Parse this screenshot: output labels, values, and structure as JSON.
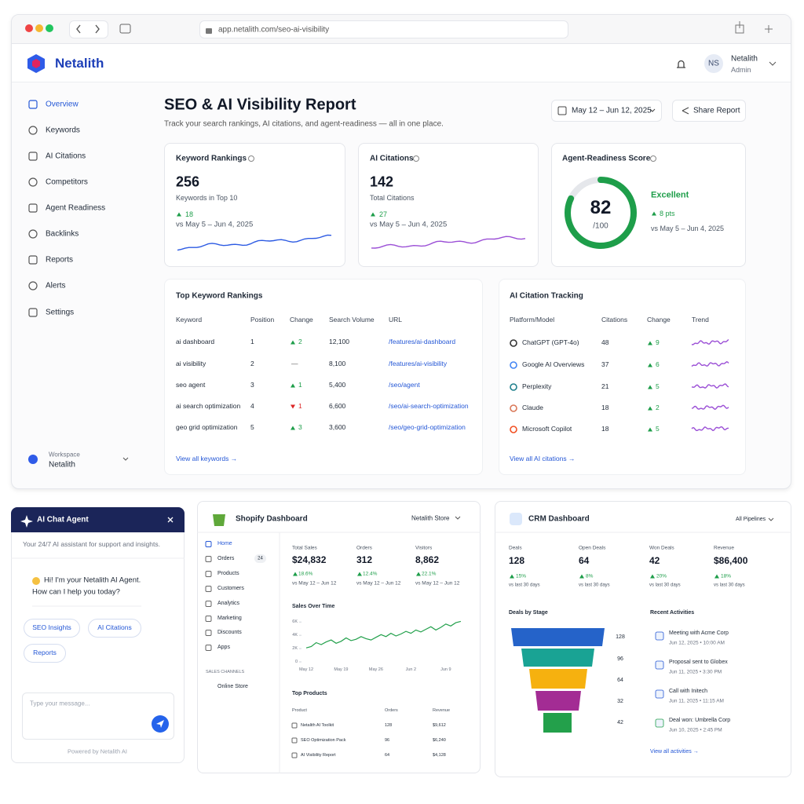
{
  "browser": {
    "url": "app.netalith.com/seo-ai-visibility"
  },
  "app": {
    "brand": "Netalith",
    "user": {
      "initials": "NS",
      "name": "Netalith",
      "role": "Admin"
    },
    "nav": [
      "Overview",
      "Keywords",
      "AI Citations",
      "Competitors",
      "Agent Readiness",
      "Backlinks",
      "Reports",
      "Alerts",
      "Settings"
    ],
    "workspace": {
      "label": "Workspace",
      "name": "Netalith"
    }
  },
  "report": {
    "title": "SEO & AI Visibility Report",
    "subtitle": "Track your search rankings, AI citations, and agent-readiness — all in one place.",
    "date_range": "May 12 – Jun 12, 2025",
    "share": "Share Report",
    "cards": [
      {
        "title": "Keyword Rankings",
        "value": "256",
        "caption": "Keywords in Top 10",
        "delta": "18",
        "compare": "vs May 5 – Jun 4, 2025"
      },
      {
        "title": "AI Citations",
        "value": "142",
        "caption": "Total Citations",
        "delta": "27",
        "compare": "vs May 5 – Jun 4, 2025"
      }
    ],
    "readiness": {
      "title": "Agent-Readiness Score",
      "score": 82,
      "max": {
        "value": 100,
        "label": "/100"
      },
      "rating": "Excellent",
      "delta": "8 pts",
      "compare": "vs May 5 – Jun 4, 2025"
    },
    "keywords": {
      "title": "Top Keyword Rankings",
      "columns": [
        "Keyword",
        "Position",
        "Change",
        "Search Volume",
        "URL"
      ],
      "rows": [
        {
          "keyword": "ai dashboard",
          "position": "1",
          "change": "2",
          "dir": "up",
          "volume": "12,100",
          "url": "/features/ai-dashboard"
        },
        {
          "keyword": "ai visibility",
          "position": "2",
          "change": "—",
          "dir": "none",
          "volume": "8,100",
          "url": "/features/ai-visibility"
        },
        {
          "keyword": "seo agent",
          "position": "3",
          "change": "1",
          "dir": "up",
          "volume": "5,400",
          "url": "/seo/agent"
        },
        {
          "keyword": "ai search optimization",
          "position": "4",
          "change": "1",
          "dir": "down",
          "volume": "6,600",
          "url": "/seo/ai-search-optimization"
        },
        {
          "keyword": "geo grid optimization",
          "position": "5",
          "change": "3",
          "dir": "up",
          "volume": "3,600",
          "url": "/seo/geo-grid-optimization"
        }
      ],
      "link": "View all keywords"
    },
    "citations": {
      "title": "AI Citation Tracking",
      "columns": [
        "Platform/Model",
        "Citations",
        "Change",
        "Trend"
      ],
      "rows": [
        {
          "platform": "ChatGPT (GPT-4o)",
          "citations": "48",
          "change": "9"
        },
        {
          "platform": "Google AI Overviews",
          "citations": "37",
          "change": "6"
        },
        {
          "platform": "Perplexity",
          "citations": "21",
          "change": "5"
        },
        {
          "platform": "Claude",
          "citations": "18",
          "change": "2"
        },
        {
          "platform": "Microsoft Copilot",
          "citations": "18",
          "change": "5"
        }
      ],
      "link": "View all AI citations"
    }
  },
  "chat": {
    "title": "AI Chat Agent",
    "subtitle": "Your 24/7 AI assistant for support and insights.",
    "greeting": "Hi! I'm your Netalith AI Agent.",
    "question": "How can I help you today?",
    "chips": [
      "SEO Insights",
      "AI Citations",
      "Reports"
    ],
    "placeholder": "Type your message...",
    "footer": "Powered by Netalith AI"
  },
  "shopify": {
    "title": "Shopify Dashboard",
    "store": "Netalith Store",
    "nav": [
      "Home",
      "Orders",
      "Products",
      "Customers",
      "Analytics",
      "Marketing",
      "Discounts",
      "Apps"
    ],
    "orders_badge": "24",
    "channels_label": "SALES CHANNELS",
    "channel": "Online Store",
    "kpis": [
      {
        "label": "Total Sales",
        "value": "$24,832",
        "delta": "18.6%",
        "compare": "vs May 12 – Jun 12"
      },
      {
        "label": "Orders",
        "value": "312",
        "delta": "12.4%",
        "compare": "vs May 12 – Jun 12"
      },
      {
        "label": "Visitors",
        "value": "8,862",
        "delta": "22.1%",
        "compare": "vs May 12 – Jun 12"
      }
    ],
    "chart": {
      "type": "line",
      "title": "Sales Over Time",
      "color": "#22a04b",
      "categories": [
        "May 12",
        null,
        null,
        null,
        null,
        null,
        null,
        "May 19",
        null,
        null,
        null,
        null,
        null,
        null,
        "May 26",
        null,
        null,
        null,
        null,
        null,
        null,
        "Jun 2",
        null,
        null,
        null,
        null,
        null,
        null,
        "Jun 9",
        null,
        null,
        null
      ],
      "values": [
        2100,
        2300,
        2900,
        2600,
        3000,
        3300,
        2800,
        3100,
        3600,
        3200,
        3400,
        3800,
        3500,
        3300,
        3700,
        4100,
        3800,
        4300,
        3900,
        4200,
        4600,
        4300,
        4800,
        4500,
        4900,
        5300,
        4800,
        5200,
        5700,
        5400,
        5900,
        6100
      ],
      "ylim": [
        0,
        6500
      ],
      "yticks": [
        0,
        {
          "value": 2000,
          "label": "2K"
        },
        {
          "value": 4000,
          "label": "4K"
        },
        {
          "value": 6000,
          "label": "6K"
        }
      ]
    },
    "products": {
      "title": "Top Products",
      "columns": [
        "Product",
        "Orders",
        "Revenue"
      ],
      "rows": [
        [
          "Netalith AI Toolkit",
          "128",
          "$9,612"
        ],
        [
          "SEO Optimization Pack",
          "96",
          "$6,240"
        ],
        [
          "AI Visibility Report",
          "64",
          "$4,128"
        ]
      ]
    }
  },
  "crm": {
    "title": "CRM Dashboard",
    "filter": "All Pipelines",
    "kpis": [
      {
        "label": "Deals",
        "value": "128",
        "delta": "15%",
        "compare": "vs last 30 days"
      },
      {
        "label": "Open Deals",
        "value": "64",
        "delta": "8%",
        "compare": "vs last 30 days"
      },
      {
        "label": "Won Deals",
        "value": "42",
        "delta": "20%",
        "compare": "vs last 30 days"
      },
      {
        "label": "Revenue",
        "value": "$86,400",
        "delta": "18%",
        "compare": "vs last 30 days"
      }
    ],
    "funnel": {
      "title": "Deals by Stage",
      "values": [
        128,
        96,
        64,
        32,
        42
      ]
    },
    "activities": {
      "title": "Recent Activities",
      "items": [
        {
          "title": "Meeting with Acme Corp",
          "time": "Jun 12, 2025 • 10:00 AM"
        },
        {
          "title": "Proposal sent to Globex",
          "time": "Jun 11, 2025 • 3:30 PM"
        },
        {
          "title": "Call with Initech",
          "time": "Jun 11, 2025 • 11:15 AM"
        },
        {
          "title": "Deal won: Umbrella Corp",
          "time": "Jun 10, 2025 • 2:45 PM"
        }
      ],
      "link": "View all activities"
    }
  }
}
